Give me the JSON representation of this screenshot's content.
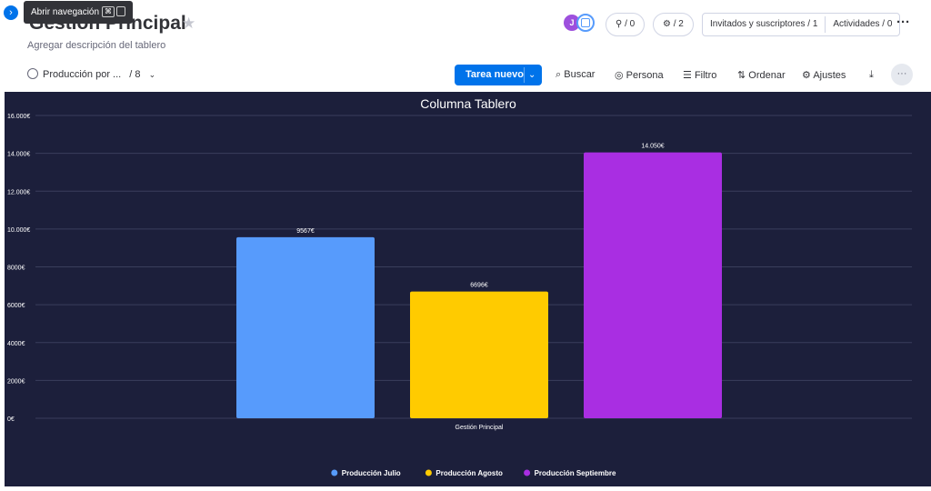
{
  "tooltip": {
    "text": "Abrir navegación",
    "shortcut": "⌘"
  },
  "board": {
    "title": "Gestión Principal",
    "description": "Agregar descripción del tablero"
  },
  "header": {
    "avatar_initial": "J",
    "integrations_count": "/ 0",
    "automations_count": "/ 2",
    "invited_label": "Invitados y suscriptores / 1",
    "activities_label": "Actividades / 0",
    "more_label": "···"
  },
  "toolbar": {
    "view_name": "Producción por ...",
    "view_count": "/ 8",
    "new_task_label": "Tarea nuevo",
    "search_label": "Buscar",
    "person_label": "Persona",
    "filter_label": "Filtro",
    "sort_label": "Ordenar",
    "settings_label": "Ajustes",
    "more_label": "···"
  },
  "colors": {
    "accent": "#0073ea",
    "chart_bg": "#1c1f3b",
    "series_julio": "#579bfc",
    "series_agosto": "#ffcb00",
    "series_septiembre": "#a92ee2"
  },
  "chart_data": {
    "type": "bar",
    "title": "Columna Tablero",
    "categories": [
      "Gestión Principal"
    ],
    "series": [
      {
        "name": "Producción Julio",
        "values": [
          9567
        ],
        "label": "9567€",
        "color": "#579bfc"
      },
      {
        "name": "Producción Agosto",
        "values": [
          6696
        ],
        "label": "6696€",
        "color": "#ffcb00"
      },
      {
        "name": "Producción Septiembre",
        "values": [
          14050
        ],
        "label": "14.050€",
        "color": "#a92ee2"
      }
    ],
    "ylim": [
      0,
      16000
    ],
    "yticks": [
      0,
      2000,
      4000,
      6000,
      8000,
      10000,
      12000,
      14000,
      16000
    ],
    "ytick_labels": [
      "0€",
      "2000€",
      "4000€",
      "6000€",
      "8000€",
      "10.000€",
      "12.000€",
      "14.000€",
      "16.000€"
    ],
    "grid": true,
    "legend_position": "bottom"
  }
}
